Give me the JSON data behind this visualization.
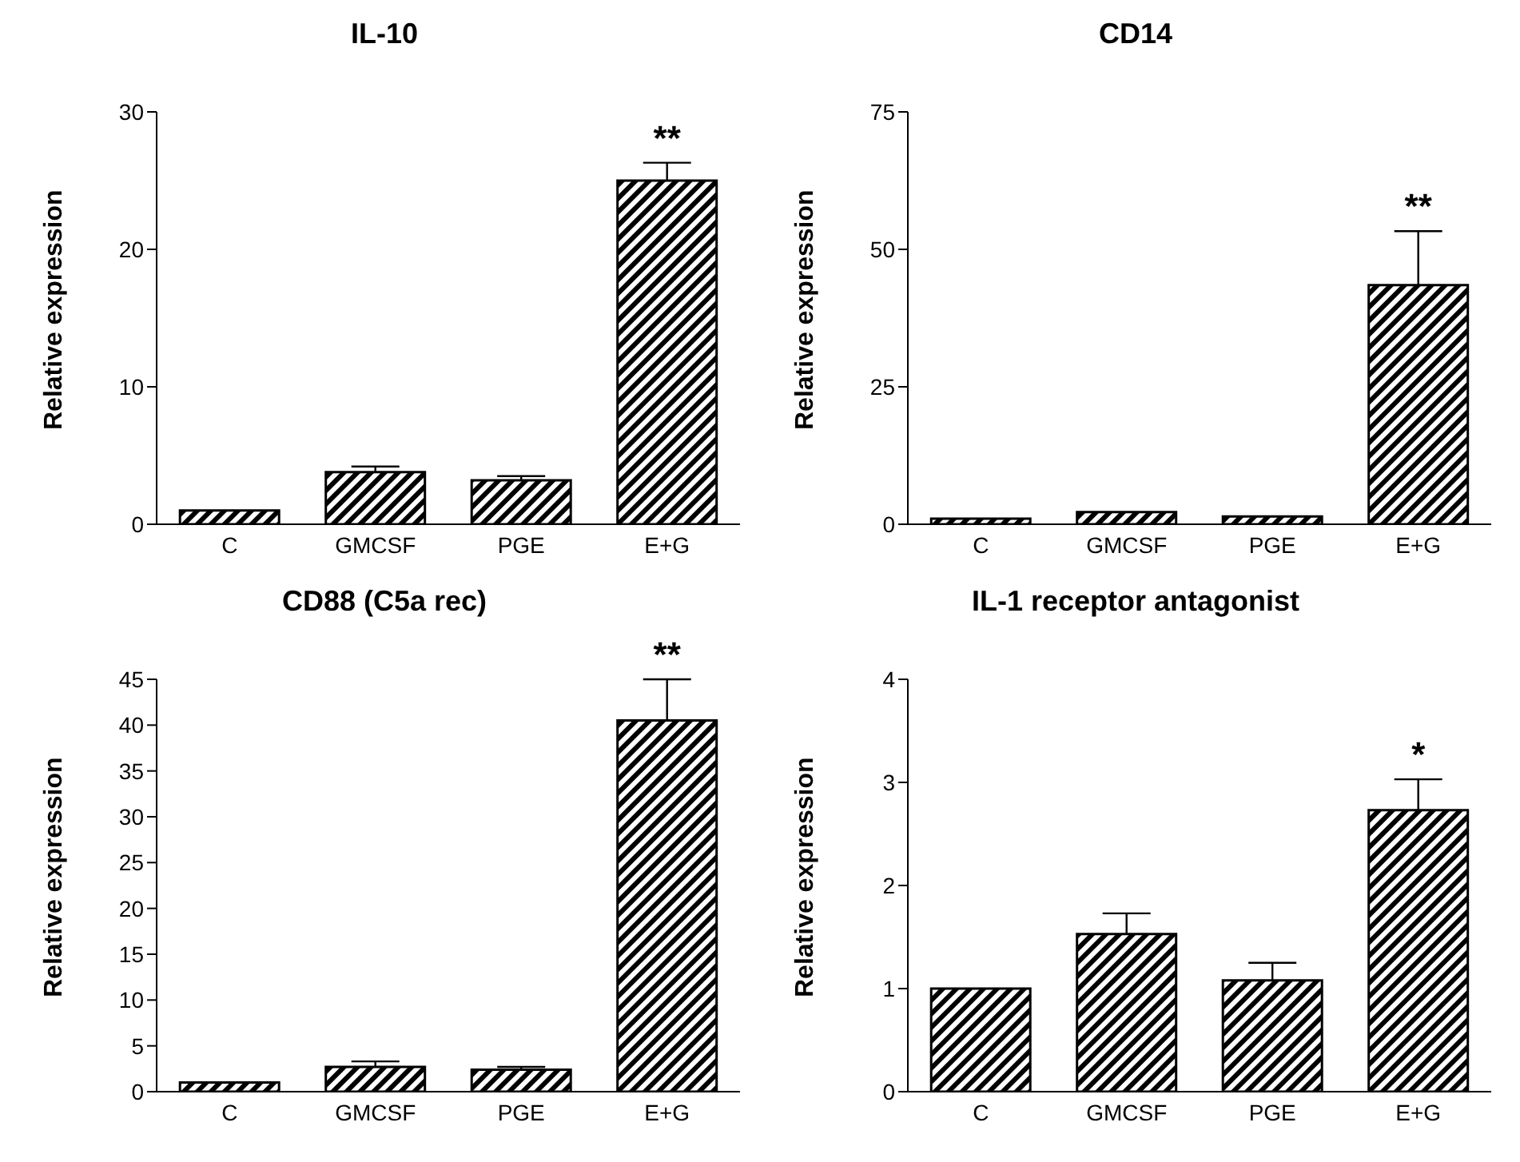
{
  "chart_data": [
    {
      "type": "bar",
      "title": "IL-10",
      "ylabel": "Relative expression",
      "categories": [
        "C",
        "GMCSF",
        "PGE",
        "E+G"
      ],
      "series": [
        {
          "color": "#000000",
          "values": [
            1.0,
            3.8,
            3.2,
            25.0
          ],
          "errors": [
            null,
            [
              3.8,
              4.2
            ],
            [
              3.2,
              3.5
            ],
            [
              25.0,
              26.3
            ]
          ]
        }
      ],
      "ylim": [
        0,
        30
      ],
      "yticks": [
        0,
        10,
        20,
        30
      ],
      "annotations": [
        "**"
      ]
    },
    {
      "type": "bar",
      "title": "CD14",
      "ylabel": "Relative expression",
      "categories": [
        "C",
        "GMCSF",
        "PGE",
        "E+G"
      ],
      "series": [
        {
          "color": "#000000",
          "values": [
            1.0,
            2.2,
            1.4,
            43.5
          ],
          "errors": [
            null,
            null,
            null,
            [
              43.5,
              53.3
            ]
          ]
        }
      ],
      "ylim": [
        0,
        75
      ],
      "yticks": [
        0,
        25,
        50,
        75
      ],
      "annotations": [
        "**"
      ]
    },
    {
      "type": "bar",
      "title": "CD88 (C5a rec)",
      "ylabel": "Relative expression",
      "categories": [
        "C",
        "GMCSF",
        "PGE",
        "E+G"
      ],
      "series": [
        {
          "color": "#000000",
          "values": [
            1.0,
            2.7,
            2.4,
            40.5
          ],
          "errors": [
            null,
            [
              2.7,
              3.3
            ],
            [
              2.4,
              2.7
            ],
            [
              40.5,
              45.0
            ]
          ]
        }
      ],
      "ylim": [
        0,
        45
      ],
      "yticks": [
        0,
        5,
        10,
        15,
        20,
        25,
        30,
        35,
        40,
        45
      ],
      "annotations": [
        "**"
      ]
    },
    {
      "type": "bar",
      "title": "IL-1 receptor antagonist",
      "ylabel": "Relative expression",
      "categories": [
        "C",
        "GMCSF",
        "PGE",
        "E+G"
      ],
      "series": [
        {
          "color": "#000000",
          "values": [
            1.0,
            1.53,
            1.08,
            2.73
          ],
          "errors": [
            null,
            [
              1.53,
              1.73
            ],
            [
              1.08,
              1.25
            ],
            [
              2.73,
              3.03
            ]
          ]
        }
      ],
      "ylim": [
        0,
        4
      ],
      "yticks": [
        0,
        1,
        2,
        3,
        4
      ],
      "annotations": [
        "*"
      ]
    }
  ]
}
